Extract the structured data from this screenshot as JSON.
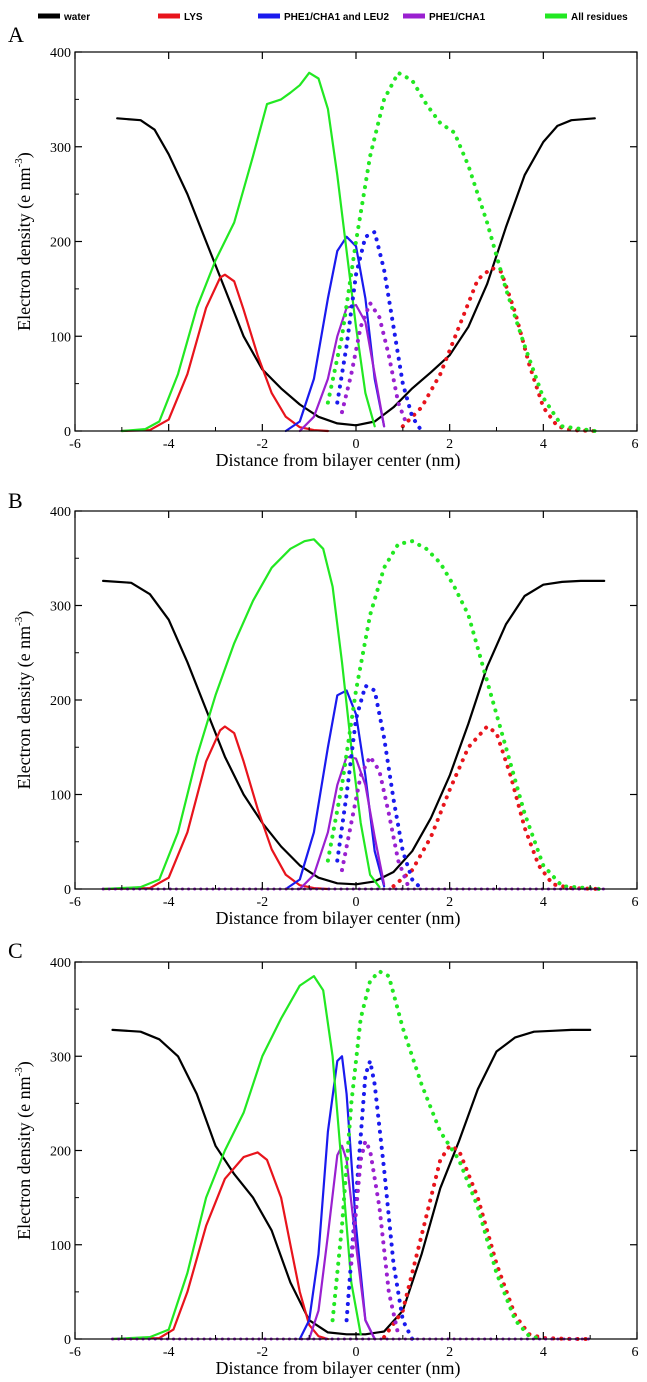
{
  "legend": [
    {
      "name": "water",
      "color": "#000000"
    },
    {
      "name": "LYS",
      "color": "#e8141c"
    },
    {
      "name": "PHE1/CHA1 and LEU2",
      "color": "#1a1aee"
    },
    {
      "name": "PHE1/CHA1",
      "color": "#9a20d0"
    },
    {
      "name": "All residues",
      "color": "#22e822"
    }
  ],
  "chart_data": [
    {
      "panel": "A",
      "type": "line",
      "xlabel": "Distance from bilayer center (nm)",
      "ylabel_main": "Electron density (e nm",
      "ylabel_sup": "-3",
      "ylabel_end": ")",
      "xlim": [
        -6,
        6
      ],
      "ylim": [
        0,
        400
      ],
      "xticks": [
        "-6",
        "-4",
        "-2",
        "0",
        "2",
        "4",
        "6"
      ],
      "yticks": [
        "0",
        "100",
        "200",
        "300",
        "400"
      ],
      "series": [
        {
          "name": "water",
          "style": "solid",
          "x": [
            -5.1,
            -4.6,
            -4.3,
            -4.0,
            -3.6,
            -3.2,
            -2.8,
            -2.4,
            -2.0,
            -1.6,
            -1.2,
            -0.8,
            -0.4,
            0.0,
            0.4,
            0.8,
            1.2,
            1.6,
            2.0,
            2.4,
            2.8,
            3.2,
            3.6,
            4.0,
            4.3,
            4.6,
            5.1
          ],
          "y": [
            330,
            328,
            318,
            292,
            250,
            200,
            150,
            100,
            65,
            45,
            28,
            15,
            8,
            6,
            10,
            25,
            45,
            62,
            80,
            110,
            155,
            215,
            270,
            305,
            322,
            328,
            330
          ]
        },
        {
          "name": "LYS",
          "style": "solid",
          "x": [
            -5.0,
            -4.4,
            -4.0,
            -3.6,
            -3.2,
            -2.9,
            -2.8,
            -2.6,
            -2.4,
            -2.1,
            -1.8,
            -1.5,
            -1.2,
            -0.9,
            -0.6
          ],
          "y": [
            0,
            1,
            12,
            60,
            130,
            162,
            165,
            158,
            128,
            80,
            40,
            15,
            4,
            1,
            0
          ]
        },
        {
          "name": "PHE1/CHA1 and LEU2",
          "style": "solid",
          "x": [
            -1.5,
            -1.2,
            -0.9,
            -0.6,
            -0.4,
            -0.2,
            0.0,
            0.2,
            0.4,
            0.6
          ],
          "y": [
            0,
            10,
            55,
            140,
            190,
            205,
            195,
            140,
            55,
            5
          ]
        },
        {
          "name": "PHE1/CHA1",
          "style": "solid",
          "x": [
            -1.2,
            -0.9,
            -0.6,
            -0.4,
            -0.2,
            0.0,
            0.2,
            0.4,
            0.6
          ],
          "y": [
            0,
            15,
            55,
            100,
            130,
            133,
            115,
            60,
            5
          ]
        },
        {
          "name": "All residues",
          "style": "solid",
          "x": [
            -5.0,
            -4.5,
            -4.2,
            -3.8,
            -3.4,
            -3.0,
            -2.6,
            -2.2,
            -1.9,
            -1.6,
            -1.4,
            -1.2,
            -1.0,
            -0.8,
            -0.6,
            -0.4,
            -0.2,
            0.0,
            0.2,
            0.4
          ],
          "y": [
            0,
            2,
            10,
            60,
            130,
            180,
            220,
            290,
            345,
            350,
            357,
            365,
            378,
            372,
            340,
            270,
            190,
            110,
            40,
            5
          ]
        },
        {
          "name": "LYS",
          "style": "dotted",
          "x": [
            1.0,
            1.4,
            1.8,
            2.2,
            2.6,
            2.9,
            3.1,
            3.4,
            3.7,
            4.0,
            4.3,
            4.6,
            5.1
          ],
          "y": [
            5,
            25,
            60,
            110,
            160,
            172,
            168,
            125,
            70,
            25,
            5,
            1,
            0
          ]
        },
        {
          "name": "PHE1/CHA1 and LEU2",
          "style": "dotted",
          "x": [
            -0.4,
            -0.2,
            0.0,
            0.2,
            0.4,
            0.6,
            0.8,
            1.0,
            1.2,
            1.4
          ],
          "y": [
            30,
            90,
            165,
            205,
            210,
            170,
            110,
            50,
            15,
            0
          ]
        },
        {
          "name": "PHE1/CHA1",
          "style": "dotted",
          "x": [
            -0.3,
            -0.1,
            0.1,
            0.3,
            0.5,
            0.7,
            0.9,
            1.1
          ],
          "y": [
            20,
            60,
            110,
            135,
            120,
            80,
            30,
            5
          ]
        },
        {
          "name": "All residues",
          "style": "dotted",
          "x": [
            -0.6,
            -0.3,
            0.0,
            0.3,
            0.6,
            0.9,
            1.2,
            1.5,
            1.8,
            2.1,
            2.4,
            2.8,
            3.2,
            3.6,
            4.0,
            4.4,
            5.1
          ],
          "y": [
            30,
            100,
            200,
            290,
            350,
            378,
            370,
            345,
            325,
            315,
            280,
            220,
            150,
            90,
            35,
            5,
            0
          ]
        }
      ]
    },
    {
      "panel": "B",
      "type": "line",
      "xlabel": "Distance from bilayer center (nm)",
      "ylabel_main": "Electron density (e nm",
      "ylabel_sup": "-3",
      "ylabel_end": ")",
      "xlim": [
        -6,
        6
      ],
      "ylim": [
        0,
        400
      ],
      "xticks": [
        "-6",
        "-4",
        "-2",
        "0",
        "2",
        "4",
        "6"
      ],
      "yticks": [
        "0",
        "100",
        "200",
        "300",
        "400"
      ],
      "series": [
        {
          "name": "water",
          "style": "solid",
          "x": [
            -5.4,
            -4.8,
            -4.4,
            -4.0,
            -3.6,
            -3.2,
            -2.8,
            -2.4,
            -2.0,
            -1.6,
            -1.2,
            -0.8,
            -0.4,
            0.0,
            0.4,
            0.8,
            1.2,
            1.6,
            2.0,
            2.4,
            2.8,
            3.2,
            3.6,
            4.0,
            4.4,
            4.8,
            5.3
          ],
          "y": [
            326,
            324,
            312,
            285,
            240,
            190,
            140,
            100,
            70,
            45,
            25,
            12,
            6,
            5,
            8,
            18,
            40,
            75,
            120,
            175,
            235,
            280,
            310,
            322,
            325,
            326,
            326
          ]
        },
        {
          "name": "LYS",
          "style": "solid",
          "x": [
            -5.4,
            -4.4,
            -4.0,
            -3.6,
            -3.2,
            -2.9,
            -2.8,
            -2.6,
            -2.4,
            -2.1,
            -1.8,
            -1.5,
            -1.2,
            -0.9,
            -0.6
          ],
          "y": [
            0,
            1,
            12,
            60,
            135,
            168,
            172,
            165,
            135,
            85,
            42,
            15,
            4,
            1,
            0
          ]
        },
        {
          "name": "PHE1/CHA1 and LEU2",
          "style": "solid",
          "x": [
            -1.5,
            -1.2,
            -0.9,
            -0.6,
            -0.4,
            -0.2,
            0.0,
            0.2,
            0.4,
            0.6
          ],
          "y": [
            0,
            10,
            60,
            150,
            205,
            210,
            185,
            120,
            40,
            3
          ]
        },
        {
          "name": "PHE1/CHA1",
          "style": "solid",
          "x": [
            -1.2,
            -0.9,
            -0.6,
            -0.4,
            -0.2,
            0.0,
            0.2,
            0.4,
            0.6
          ],
          "y": [
            0,
            15,
            60,
            110,
            140,
            138,
            110,
            55,
            5
          ]
        },
        {
          "name": "All residues",
          "style": "solid",
          "x": [
            -5.4,
            -4.6,
            -4.2,
            -3.8,
            -3.4,
            -3.0,
            -2.6,
            -2.2,
            -1.8,
            -1.4,
            -1.1,
            -0.9,
            -0.7,
            -0.5,
            -0.3,
            -0.1,
            0.1,
            0.3,
            0.5
          ],
          "y": [
            0,
            2,
            10,
            60,
            140,
            205,
            260,
            305,
            340,
            360,
            368,
            370,
            360,
            320,
            240,
            150,
            70,
            15,
            2
          ]
        },
        {
          "name": "LYS",
          "style": "dotted",
          "x": [
            0.8,
            1.2,
            1.6,
            2.0,
            2.4,
            2.8,
            3.0,
            3.3,
            3.6,
            3.9,
            4.2,
            4.6,
            5.2
          ],
          "y": [
            3,
            20,
            55,
            105,
            150,
            172,
            165,
            120,
            65,
            25,
            5,
            1,
            0
          ]
        },
        {
          "name": "PHE1/CHA1 and LEU2",
          "style": "dotted",
          "x": [
            -0.4,
            -0.2,
            0.0,
            0.2,
            0.4,
            0.6,
            0.8,
            1.0,
            1.2,
            1.4
          ],
          "y": [
            30,
            100,
            180,
            215,
            210,
            160,
            95,
            40,
            10,
            0
          ]
        },
        {
          "name": "PHE1/CHA1",
          "style": "dotted",
          "x": [
            -0.3,
            -0.1,
            0.1,
            0.3,
            0.5,
            0.7,
            0.9,
            1.1
          ],
          "y": [
            20,
            70,
            120,
            140,
            125,
            80,
            30,
            5
          ]
        },
        {
          "name": "All residues",
          "style": "dotted",
          "x": [
            -0.6,
            -0.3,
            0.0,
            0.3,
            0.6,
            0.9,
            1.2,
            1.5,
            1.8,
            2.1,
            2.4,
            2.8,
            3.2,
            3.6,
            4.0,
            4.4,
            5.2
          ],
          "y": [
            30,
            110,
            210,
            290,
            340,
            365,
            368,
            360,
            345,
            320,
            290,
            220,
            150,
            80,
            25,
            3,
            0
          ]
        },
        {
          "name": "PHE1/CHA1",
          "style": "flat",
          "x": [
            -5.4,
            -2.0,
            1.4,
            5.3
          ],
          "y": [
            0,
            0,
            0,
            0
          ]
        }
      ]
    },
    {
      "panel": "C",
      "type": "line",
      "xlabel": "Distance from bilayer center (nm)",
      "ylabel_main": "Electron density (e nm",
      "ylabel_sup": "-3",
      "ylabel_end": ")",
      "xlim": [
        -6,
        6
      ],
      "ylim": [
        0,
        400
      ],
      "xticks": [
        "-6",
        "-4",
        "-2",
        "0",
        "2",
        "4",
        "6"
      ],
      "yticks": [
        "0",
        "100",
        "200",
        "300",
        "400"
      ],
      "series": [
        {
          "name": "water",
          "style": "solid",
          "x": [
            -5.2,
            -4.6,
            -4.2,
            -3.8,
            -3.4,
            -3.0,
            -2.6,
            -2.2,
            -1.8,
            -1.4,
            -1.0,
            -0.6,
            -0.2,
            0.2,
            0.6,
            1.0,
            1.4,
            1.8,
            2.2,
            2.6,
            3.0,
            3.4,
            3.8,
            4.2,
            4.6,
            5.0
          ],
          "y": [
            328,
            326,
            318,
            300,
            260,
            205,
            175,
            150,
            115,
            60,
            20,
            7,
            5,
            5,
            8,
            30,
            90,
            160,
            210,
            265,
            305,
            320,
            326,
            327,
            328,
            328
          ]
        },
        {
          "name": "LYS",
          "style": "solid",
          "x": [
            -5.2,
            -4.2,
            -3.9,
            -3.6,
            -3.2,
            -2.8,
            -2.4,
            -2.1,
            -1.9,
            -1.6,
            -1.4,
            -1.2,
            -1.0,
            -0.8,
            -0.6
          ],
          "y": [
            0,
            1,
            10,
            50,
            120,
            170,
            193,
            198,
            190,
            150,
            100,
            50,
            15,
            3,
            0
          ]
        },
        {
          "name": "PHE1/CHA1 and LEU2",
          "style": "solid",
          "x": [
            -1.2,
            -1.0,
            -0.8,
            -0.6,
            -0.4,
            -0.3,
            -0.2,
            0.0,
            0.2,
            0.4
          ],
          "y": [
            0,
            20,
            90,
            220,
            295,
            300,
            260,
            120,
            20,
            0
          ]
        },
        {
          "name": "PHE1/CHA1",
          "style": "solid",
          "x": [
            -1.0,
            -0.8,
            -0.6,
            -0.4,
            -0.3,
            -0.2,
            0.0,
            0.2,
            0.4
          ],
          "y": [
            0,
            30,
            110,
            195,
            205,
            190,
            100,
            20,
            0
          ]
        },
        {
          "name": "All residues",
          "style": "solid",
          "x": [
            -5.2,
            -4.4,
            -4.0,
            -3.6,
            -3.2,
            -2.8,
            -2.4,
            -2.0,
            -1.6,
            -1.2,
            -0.9,
            -0.7,
            -0.5,
            -0.3,
            -0.1,
            0.1
          ],
          "y": [
            0,
            2,
            10,
            70,
            150,
            200,
            240,
            300,
            340,
            375,
            385,
            370,
            300,
            180,
            60,
            5
          ]
        },
        {
          "name": "LYS",
          "style": "dotted",
          "x": [
            0.6,
            1.0,
            1.4,
            1.8,
            2.0,
            2.2,
            2.6,
            3.0,
            3.4,
            3.7,
            4.0,
            4.6,
            5.0
          ],
          "y": [
            2,
            30,
            110,
            190,
            205,
            200,
            150,
            80,
            25,
            5,
            1,
            0,
            0
          ]
        },
        {
          "name": "PHE1/CHA1 and LEU2",
          "style": "dotted",
          "x": [
            -0.2,
            0.0,
            0.2,
            0.3,
            0.4,
            0.6,
            0.8,
            1.0,
            1.2
          ],
          "y": [
            20,
            150,
            280,
            295,
            270,
            180,
            80,
            20,
            0
          ]
        },
        {
          "name": "PHE1/CHA1",
          "style": "dotted",
          "x": [
            -0.1,
            0.1,
            0.2,
            0.3,
            0.5,
            0.7,
            0.9
          ],
          "y": [
            80,
            190,
            210,
            200,
            140,
            50,
            5
          ]
        },
        {
          "name": "All residues",
          "style": "dotted",
          "x": [
            -0.5,
            -0.3,
            -0.1,
            0.1,
            0.3,
            0.5,
            0.7,
            1.0,
            1.4,
            1.8,
            2.2,
            2.6,
            3.0,
            3.4,
            3.7,
            4.0
          ],
          "y": [
            20,
            120,
            250,
            340,
            380,
            390,
            385,
            330,
            270,
            220,
            190,
            140,
            70,
            20,
            3,
            0
          ]
        },
        {
          "name": "PHE1/CHA1",
          "style": "flat",
          "x": [
            -5.2,
            -1.0,
            1.0,
            5.0
          ],
          "y": [
            0,
            0,
            0,
            0
          ]
        }
      ]
    }
  ]
}
